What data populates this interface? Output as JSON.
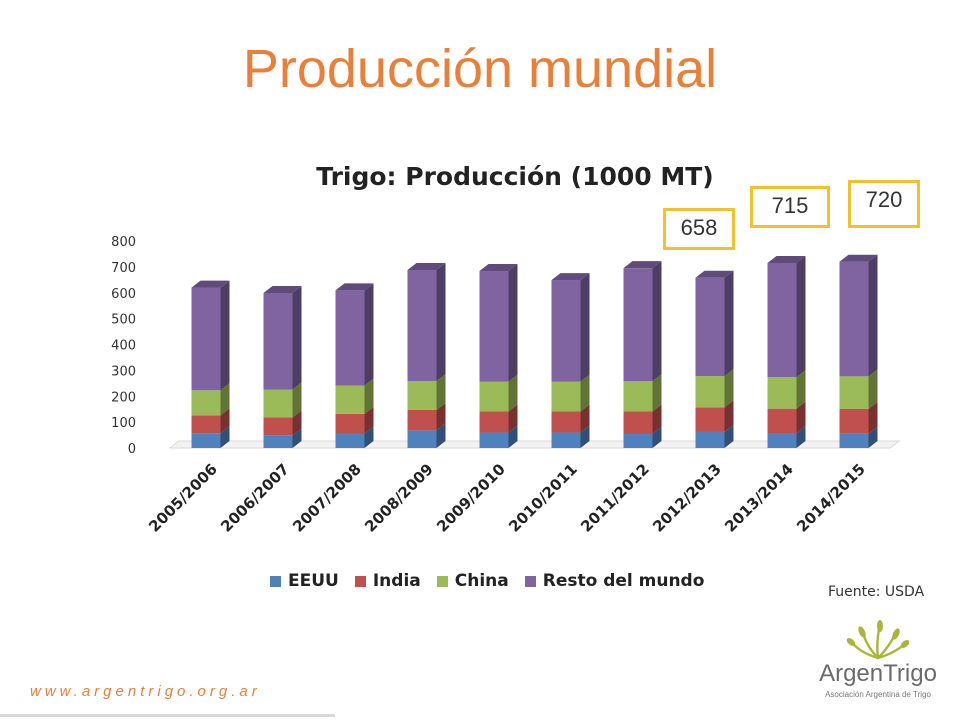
{
  "slide": {
    "title": "Producción mundial",
    "source": "Fuente: USDA",
    "url": "www.argentrigo.org.ar"
  },
  "logo": {
    "name": "ArgenTrigo",
    "tagline": "Asociación Argentina de Trigo"
  },
  "callouts": [
    {
      "category": "2012/2013",
      "value": "658"
    },
    {
      "category": "2013/2014",
      "value": "715"
    },
    {
      "category": "2014/2015",
      "value": "720"
    }
  ],
  "chart_data": {
    "type": "bar",
    "stacked": true,
    "style": "3d-column",
    "title": "Trigo: Producción (1000 MT)",
    "xlabel": "",
    "ylabel": "",
    "ylim": [
      0,
      800
    ],
    "yticks": [
      0,
      100,
      200,
      300,
      400,
      500,
      600,
      700,
      800
    ],
    "grid": false,
    "legend_position": "bottom",
    "categories": [
      "2005/2006",
      "2006/2007",
      "2007/2008",
      "2008/2009",
      "2009/2010",
      "2010/2011",
      "2011/2012",
      "2012/2013",
      "2013/2014",
      "2014/2015"
    ],
    "series": [
      {
        "name": "EEUU",
        "color": "#4f81bd",
        "values": [
          57,
          49,
          56,
          68,
          60,
          60,
          54,
          62,
          58,
          55
        ]
      },
      {
        "name": "India",
        "color": "#c0504d",
        "values": [
          69,
          69,
          76,
          79,
          81,
          81,
          87,
          95,
          94,
          96
        ]
      },
      {
        "name": "China",
        "color": "#9bbb59",
        "values": [
          97,
          108,
          109,
          112,
          115,
          115,
          117,
          121,
          122,
          126
        ]
      },
      {
        "name": "Resto del mundo",
        "color": "#8064a2",
        "values": [
          397,
          373,
          368,
          429,
          428,
          393,
          437,
          380,
          441,
          443
        ]
      }
    ]
  }
}
